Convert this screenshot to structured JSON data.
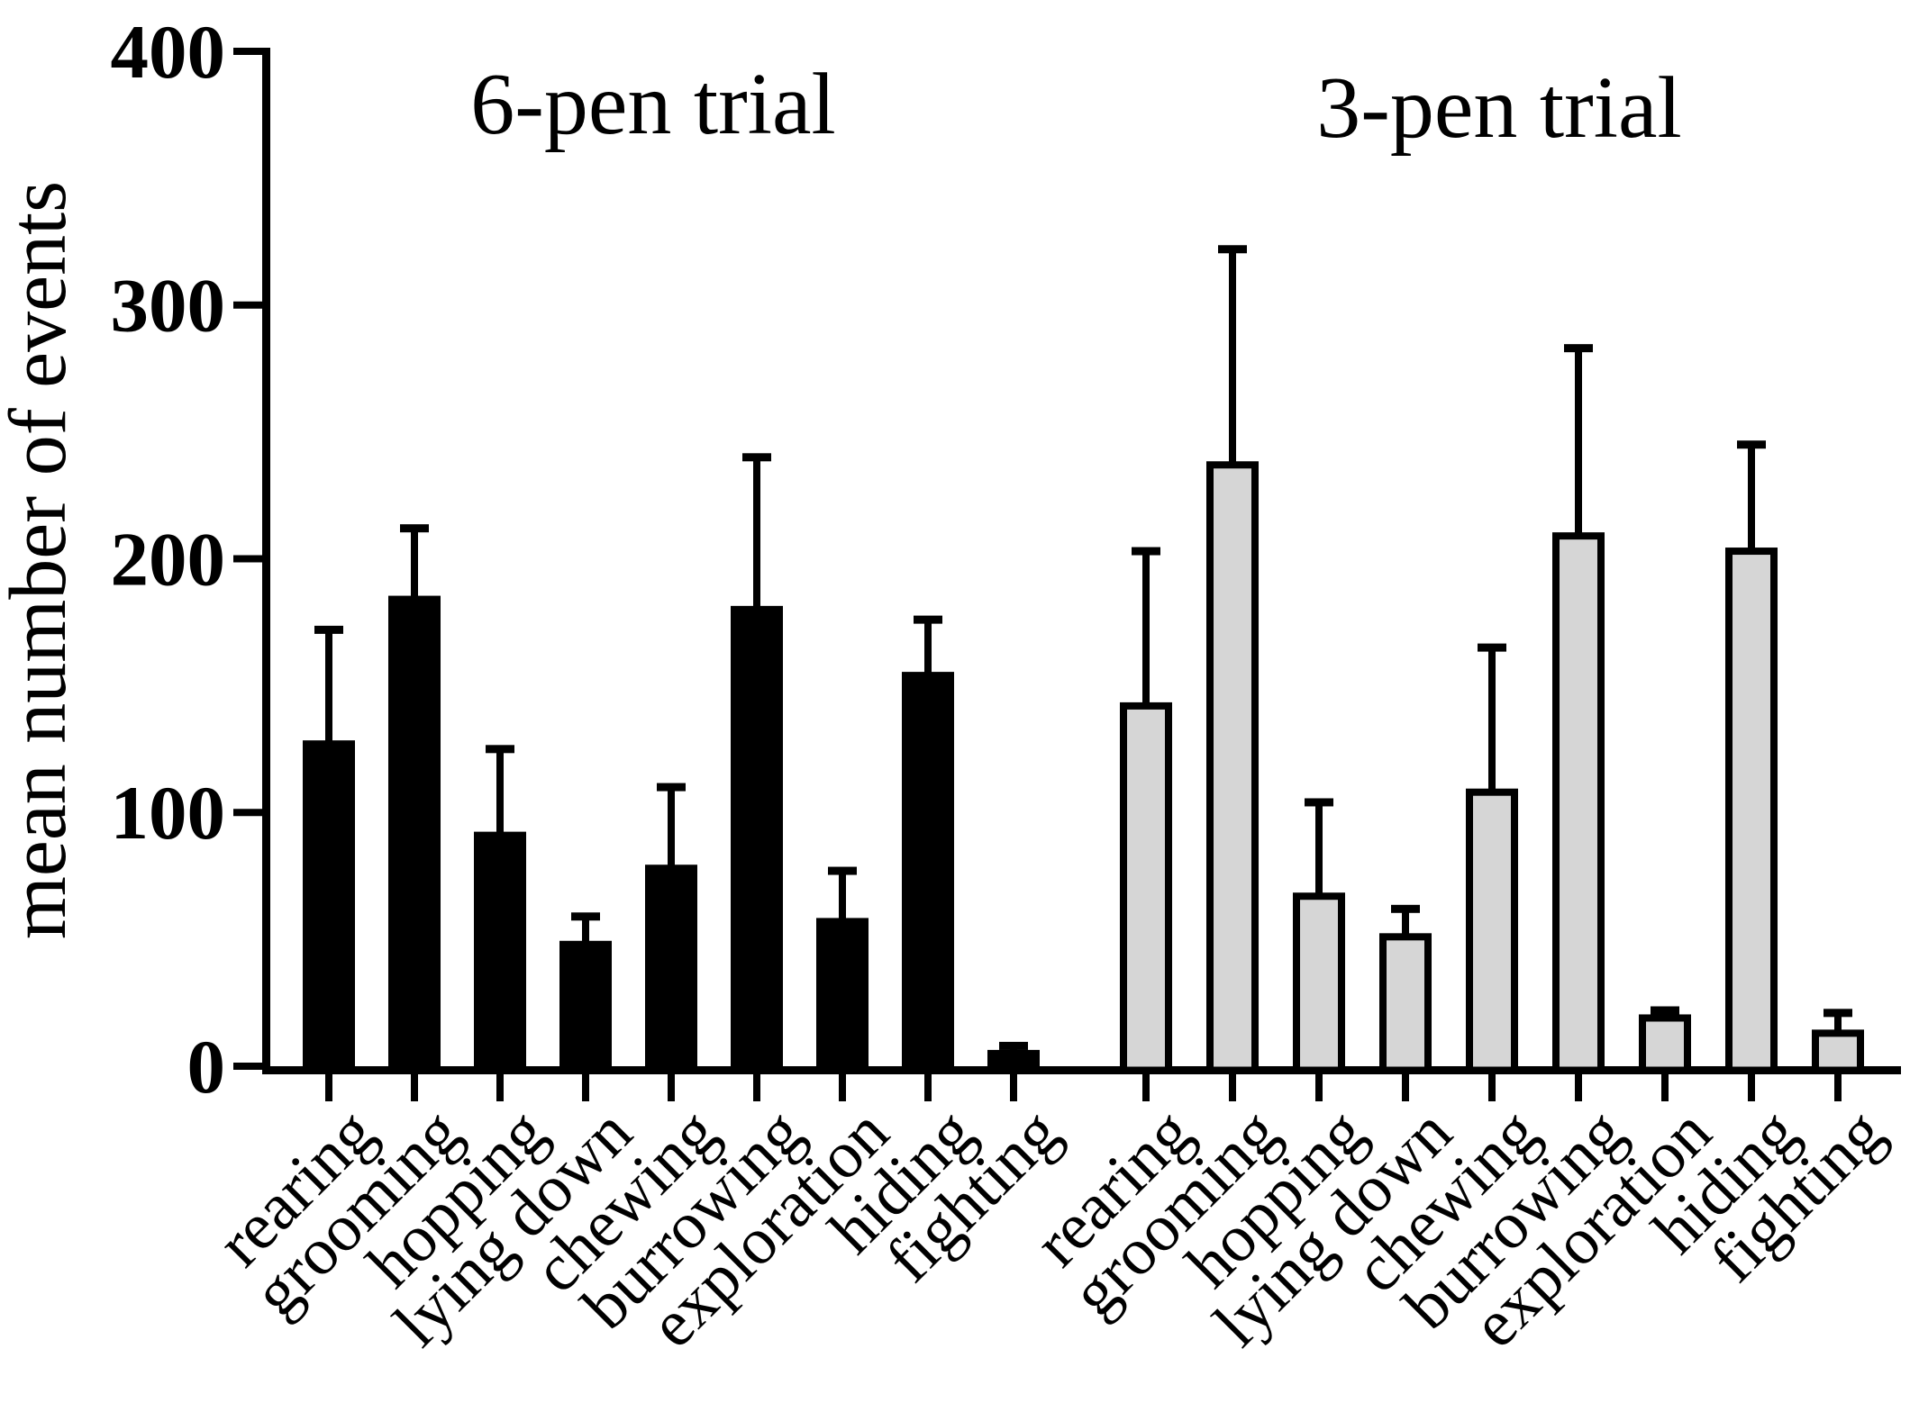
{
  "figure": {
    "background": "#ffffff",
    "bar_outline_color": "#000000",
    "axis_color": "#000000"
  },
  "chart_data": {
    "type": "bar",
    "title": "",
    "ylabel": "mean number of events",
    "xlabel": "",
    "ylim": [
      0,
      400
    ],
    "yticks": [
      0,
      100,
      200,
      300,
      400
    ],
    "grid": false,
    "legend": "none",
    "error_bars": "upper-only",
    "categories": [
      "rearing",
      "grooming",
      "hopping",
      "lying down",
      "chewing",
      "burrowing",
      "exploration",
      "hiding",
      "fighting"
    ],
    "groups": [
      {
        "title": "6-pen trial",
        "bar_fill": "#000000",
        "bar_stroke": "#000000",
        "values": [
          127,
          184,
          91,
          48,
          78,
          180,
          57,
          154,
          5
        ],
        "errors_upper": [
          45,
          28,
          34,
          11,
          32,
          60,
          20,
          22,
          3
        ]
      },
      {
        "title": "3-pen trial",
        "bar_fill": "#d6d6d6",
        "bar_stroke": "#000000",
        "values": [
          142,
          237,
          67,
          51,
          108,
          209,
          19,
          203,
          13
        ],
        "errors_upper": [
          61,
          85,
          37,
          11,
          57,
          74,
          3,
          42,
          8
        ]
      }
    ]
  }
}
